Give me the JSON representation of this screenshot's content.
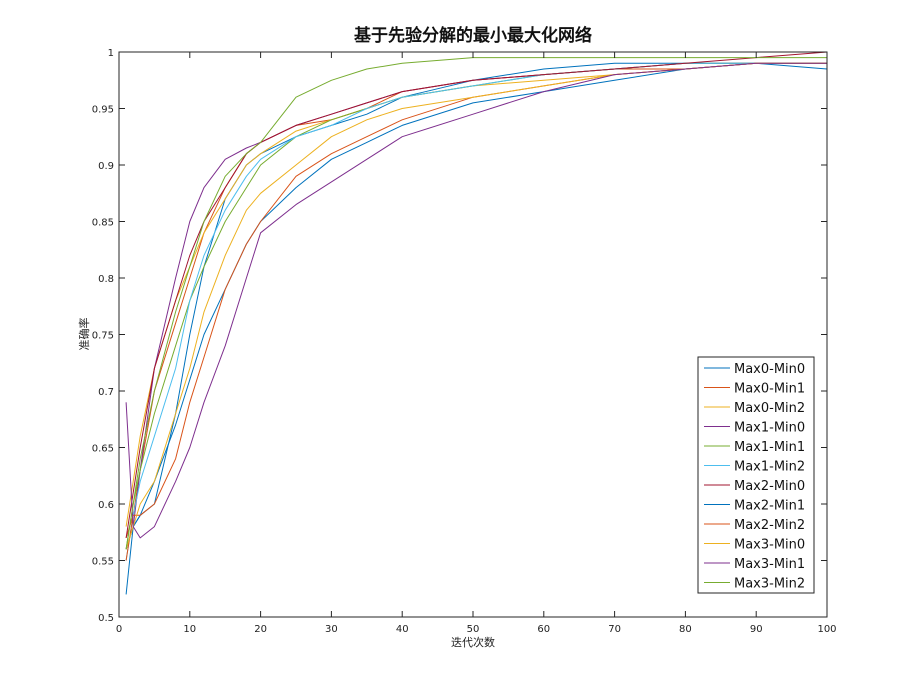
{
  "chart_data": {
    "type": "line",
    "title": "基于先验分解的最小最大化网络",
    "xlabel": "迭代次数",
    "ylabel": "准确率",
    "xlim": [
      0,
      100
    ],
    "ylim": [
      0.5,
      1.0
    ],
    "xticks": [
      0,
      10,
      20,
      30,
      40,
      50,
      60,
      70,
      80,
      90,
      100
    ],
    "yticks": [
      0.5,
      0.55,
      0.6,
      0.65,
      0.7,
      0.75,
      0.8,
      0.85,
      0.9,
      0.95,
      1.0
    ],
    "ytick_labels": [
      "0.5",
      "0.55",
      "0.6",
      "0.65",
      "0.7",
      "0.75",
      "0.8",
      "0.85",
      "0.9",
      "0.95",
      "1"
    ],
    "grid": false,
    "box": true,
    "legend_position": "bottom-right",
    "series": [
      {
        "name": "Max0-Min0",
        "color": "#0072BD",
        "x": [
          1,
          2,
          3,
          5,
          8,
          10,
          12,
          15,
          18,
          20,
          25,
          30,
          35,
          40,
          50,
          60,
          70,
          80,
          90,
          100
        ],
        "values": [
          0.52,
          0.58,
          0.59,
          0.6,
          0.68,
          0.75,
          0.81,
          0.87,
          0.9,
          0.91,
          0.925,
          0.935,
          0.945,
          0.96,
          0.975,
          0.985,
          0.99,
          0.99,
          0.99,
          0.985
        ]
      },
      {
        "name": "Max0-Min1",
        "color": "#D95319",
        "x": [
          1,
          2,
          3,
          5,
          8,
          10,
          12,
          15,
          18,
          20,
          25,
          30,
          35,
          40,
          50,
          60,
          70,
          80,
          90,
          100
        ],
        "values": [
          0.57,
          0.59,
          0.63,
          0.7,
          0.76,
          0.8,
          0.84,
          0.88,
          0.91,
          0.92,
          0.935,
          0.94,
          0.95,
          0.965,
          0.975,
          0.98,
          0.985,
          0.985,
          0.99,
          0.99
        ]
      },
      {
        "name": "Max0-Min2",
        "color": "#EDB120",
        "x": [
          1,
          2,
          3,
          5,
          8,
          10,
          12,
          15,
          18,
          20,
          25,
          30,
          35,
          40,
          50,
          60,
          70,
          80,
          90,
          100
        ],
        "values": [
          0.58,
          0.62,
          0.66,
          0.72,
          0.78,
          0.81,
          0.84,
          0.87,
          0.9,
          0.91,
          0.93,
          0.94,
          0.95,
          0.96,
          0.97,
          0.975,
          0.98,
          0.985,
          0.99,
          0.99
        ]
      },
      {
        "name": "Max1-Min0",
        "color": "#7E2F8E",
        "x": [
          1,
          2,
          3,
          5,
          8,
          10,
          12,
          15,
          18,
          20,
          25,
          30,
          35,
          40,
          50,
          60,
          70,
          80,
          90,
          100
        ],
        "values": [
          0.56,
          0.58,
          0.63,
          0.72,
          0.8,
          0.85,
          0.88,
          0.905,
          0.915,
          0.92,
          0.935,
          0.945,
          0.955,
          0.965,
          0.975,
          0.98,
          0.985,
          0.99,
          0.99,
          0.99
        ]
      },
      {
        "name": "Max1-Min1",
        "color": "#77AC30",
        "x": [
          1,
          2,
          3,
          5,
          8,
          10,
          12,
          15,
          18,
          20,
          25,
          30,
          35,
          40,
          50,
          60,
          70,
          80,
          90,
          100
        ],
        "values": [
          0.56,
          0.6,
          0.63,
          0.68,
          0.74,
          0.78,
          0.81,
          0.85,
          0.88,
          0.9,
          0.925,
          0.94,
          0.95,
          0.96,
          0.97,
          0.98,
          0.985,
          0.99,
          0.99,
          0.99
        ]
      },
      {
        "name": "Max1-Min2",
        "color": "#4DBEEE",
        "x": [
          1,
          2,
          3,
          5,
          8,
          10,
          12,
          15,
          18,
          20,
          25,
          30,
          35,
          40,
          50,
          60,
          70,
          80,
          90,
          100
        ],
        "values": [
          0.55,
          0.59,
          0.62,
          0.66,
          0.72,
          0.78,
          0.82,
          0.86,
          0.89,
          0.905,
          0.925,
          0.935,
          0.95,
          0.96,
          0.97,
          0.98,
          0.985,
          0.99,
          0.99,
          0.99
        ]
      },
      {
        "name": "Max2-Min0",
        "color": "#A2142F",
        "x": [
          1,
          2,
          3,
          5,
          8,
          10,
          12,
          15,
          18,
          20,
          25,
          30,
          35,
          40,
          50,
          60,
          70,
          80,
          90,
          100
        ],
        "values": [
          0.57,
          0.61,
          0.65,
          0.72,
          0.78,
          0.82,
          0.85,
          0.88,
          0.91,
          0.92,
          0.935,
          0.945,
          0.955,
          0.965,
          0.975,
          0.98,
          0.985,
          0.99,
          0.995,
          1.0
        ]
      },
      {
        "name": "Max2-Min1",
        "color": "#0072BD",
        "x": [
          1,
          2,
          3,
          5,
          8,
          10,
          12,
          15,
          18,
          20,
          25,
          30,
          35,
          40,
          50,
          60,
          70,
          80,
          90,
          100
        ],
        "values": [
          0.56,
          0.58,
          0.59,
          0.62,
          0.67,
          0.71,
          0.75,
          0.79,
          0.83,
          0.85,
          0.88,
          0.905,
          0.92,
          0.935,
          0.955,
          0.965,
          0.975,
          0.985,
          0.99,
          0.99
        ]
      },
      {
        "name": "Max2-Min2",
        "color": "#D95319",
        "x": [
          1,
          2,
          3,
          5,
          8,
          10,
          12,
          15,
          18,
          20,
          25,
          30,
          35,
          40,
          50,
          60,
          70,
          80,
          90,
          100
        ],
        "values": [
          0.55,
          0.59,
          0.59,
          0.6,
          0.64,
          0.69,
          0.73,
          0.79,
          0.83,
          0.85,
          0.89,
          0.91,
          0.925,
          0.94,
          0.96,
          0.97,
          0.98,
          0.985,
          0.99,
          0.99
        ]
      },
      {
        "name": "Max3-Min0",
        "color": "#EDB120",
        "x": [
          1,
          2,
          3,
          5,
          8,
          10,
          12,
          15,
          18,
          20,
          25,
          30,
          35,
          40,
          50,
          60,
          70,
          80,
          90,
          100
        ],
        "values": [
          0.56,
          0.58,
          0.6,
          0.62,
          0.68,
          0.72,
          0.77,
          0.82,
          0.86,
          0.875,
          0.9,
          0.925,
          0.94,
          0.95,
          0.96,
          0.97,
          0.98,
          0.985,
          0.99,
          0.99
        ]
      },
      {
        "name": "Max3-Min1",
        "color": "#7E2F8E",
        "x": [
          1,
          2,
          3,
          5,
          8,
          10,
          12,
          15,
          18,
          20,
          25,
          30,
          35,
          40,
          50,
          60,
          70,
          80,
          90,
          100
        ],
        "values": [
          0.69,
          0.58,
          0.57,
          0.58,
          0.62,
          0.65,
          0.69,
          0.74,
          0.8,
          0.84,
          0.865,
          0.885,
          0.905,
          0.925,
          0.945,
          0.965,
          0.98,
          0.985,
          0.99,
          0.99
        ]
      },
      {
        "name": "Max3-Min2",
        "color": "#77AC30",
        "x": [
          1,
          2,
          3,
          5,
          8,
          10,
          12,
          15,
          18,
          20,
          25,
          30,
          35,
          40,
          50,
          60,
          70,
          80,
          90,
          100
        ],
        "values": [
          0.56,
          0.6,
          0.64,
          0.7,
          0.77,
          0.81,
          0.85,
          0.89,
          0.91,
          0.92,
          0.96,
          0.975,
          0.985,
          0.99,
          0.995,
          0.995,
          0.995,
          0.995,
          0.995,
          0.995
        ]
      }
    ]
  }
}
